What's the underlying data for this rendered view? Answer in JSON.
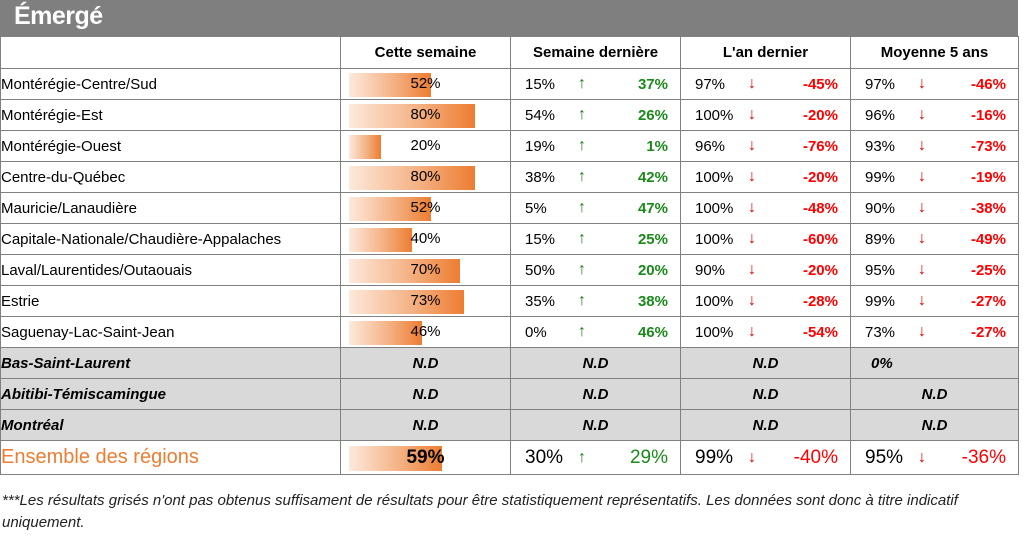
{
  "title": "Émergé",
  "headers": [
    "",
    "Cette semaine",
    "Semaine dernière",
    "L'an dernier",
    "Moyenne 5 ans"
  ],
  "arrows": {
    "up": "↑",
    "down": "↓"
  },
  "colors": {
    "up": "#1a7a1a",
    "down": "#e00000",
    "bar": "#ed7d31",
    "gray_row": "#d9d9d9",
    "title_bg": "#7f7f7f"
  },
  "rows": [
    {
      "name": "Montérégie-Centre/Sud",
      "this_week": "52%",
      "pct": 52,
      "last_week": "15%",
      "lw_dir": "up",
      "lw_diff": "37%",
      "last_year": "97%",
      "ly_dir": "down",
      "ly_diff": "-45%",
      "avg5": "97%",
      "a5_dir": "down",
      "a5_diff": "-46%"
    },
    {
      "name": "Montérégie-Est",
      "this_week": "80%",
      "pct": 80,
      "last_week": "54%",
      "lw_dir": "up",
      "lw_diff": "26%",
      "last_year": "100%",
      "ly_dir": "down",
      "ly_diff": "-20%",
      "avg5": "96%",
      "a5_dir": "down",
      "a5_diff": "-16%"
    },
    {
      "name": "Montérégie-Ouest",
      "this_week": "20%",
      "pct": 20,
      "last_week": "19%",
      "lw_dir": "up",
      "lw_diff": "1%",
      "last_year": "96%",
      "ly_dir": "down",
      "ly_diff": "-76%",
      "avg5": "93%",
      "a5_dir": "down",
      "a5_diff": "-73%"
    },
    {
      "name": "Centre-du-Québec",
      "this_week": "80%",
      "pct": 80,
      "last_week": "38%",
      "lw_dir": "up",
      "lw_diff": "42%",
      "last_year": "100%",
      "ly_dir": "down",
      "ly_diff": "-20%",
      "avg5": "99%",
      "a5_dir": "down",
      "a5_diff": "-19%"
    },
    {
      "name": "Mauricie/Lanaudière",
      "this_week": "52%",
      "pct": 52,
      "last_week": "5%",
      "lw_dir": "up",
      "lw_diff": "47%",
      "last_year": "100%",
      "ly_dir": "down",
      "ly_diff": "-48%",
      "avg5": "90%",
      "a5_dir": "down",
      "a5_diff": "-38%"
    },
    {
      "name": "Capitale-Nationale/Chaudière-Appalaches",
      "this_week": "40%",
      "pct": 40,
      "last_week": "15%",
      "lw_dir": "up",
      "lw_diff": "25%",
      "last_year": "100%",
      "ly_dir": "down",
      "ly_diff": "-60%",
      "avg5": "89%",
      "a5_dir": "down",
      "a5_diff": "-49%"
    },
    {
      "name": "Laval/Laurentides/Outaouais",
      "this_week": "70%",
      "pct": 70,
      "last_week": "50%",
      "lw_dir": "up",
      "lw_diff": "20%",
      "last_year": "90%",
      "ly_dir": "down",
      "ly_diff": "-20%",
      "avg5": "95%",
      "a5_dir": "down",
      "a5_diff": "-25%"
    },
    {
      "name": "Estrie",
      "this_week": "73%",
      "pct": 73,
      "last_week": "35%",
      "lw_dir": "up",
      "lw_diff": "38%",
      "last_year": "100%",
      "ly_dir": "down",
      "ly_diff": "-28%",
      "avg5": "99%",
      "a5_dir": "down",
      "a5_diff": "-27%"
    },
    {
      "name": "Saguenay-Lac-Saint-Jean",
      "this_week": "46%",
      "pct": 46,
      "last_week": "0%",
      "lw_dir": "up",
      "lw_diff": "46%",
      "last_year": "100%",
      "ly_dir": "down",
      "ly_diff": "-54%",
      "avg5": "73%",
      "a5_dir": "down",
      "a5_diff": "-27%"
    }
  ],
  "gray_rows": [
    {
      "name": "Bas-Saint-Laurent",
      "this_week": "N.D",
      "last_week": "N.D",
      "last_year": "N.D",
      "avg5": "0%"
    },
    {
      "name": "Abitibi-Témiscamingue",
      "this_week": "N.D",
      "last_week": "N.D",
      "last_year": "N.D",
      "avg5": "N.D"
    },
    {
      "name": "Montréal",
      "this_week": "N.D",
      "last_week": "N.D",
      "last_year": "N.D",
      "avg5": "N.D"
    }
  ],
  "total": {
    "name": "Ensemble des régions",
    "this_week": "59%",
    "pct": 59,
    "last_week": "30%",
    "lw_dir": "up",
    "lw_diff": "29%",
    "last_year": "99%",
    "ly_dir": "down",
    "ly_diff": "-40%",
    "avg5": "95%",
    "a5_dir": "down",
    "a5_diff": "-36%"
  },
  "footnote": "***Les résultats grisés n'ont pas obtenus suffisament de résultats pour être statistiquement représentatifs. Les données sont donc à titre indicatif uniquement."
}
